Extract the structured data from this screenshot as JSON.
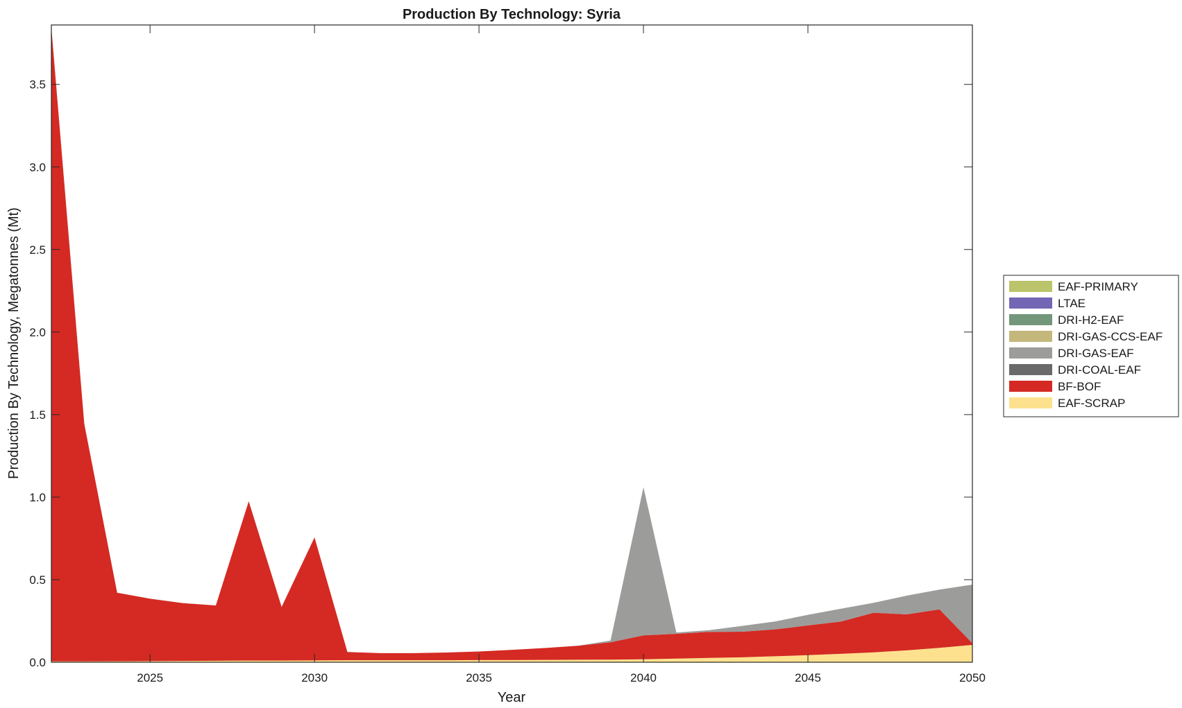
{
  "chart_data": {
    "type": "area",
    "stacked": true,
    "title": "Production By Technology: Syria",
    "xlabel": "Year",
    "ylabel": "Production By Technology, Megatonnes (Mt)",
    "xlim": [
      2022,
      2050
    ],
    "ylim": [
      0,
      3.86
    ],
    "xticks": [
      2025,
      2030,
      2035,
      2040,
      2045,
      2050
    ],
    "yticks": [
      0.0,
      0.5,
      1.0,
      1.5,
      2.0,
      2.5,
      3.0,
      3.5
    ],
    "ytick_labels": [
      "0.0",
      "0.5",
      "1.0",
      "1.5",
      "2.0",
      "2.5",
      "3.0",
      "3.5"
    ],
    "grid": false,
    "legend_position": "right",
    "x": [
      2022,
      2023,
      2024,
      2025,
      2026,
      2027,
      2028,
      2029,
      2030,
      2031,
      2032,
      2033,
      2034,
      2035,
      2036,
      2037,
      2038,
      2039,
      2040,
      2041,
      2042,
      2043,
      2044,
      2045,
      2046,
      2047,
      2048,
      2049,
      2050
    ],
    "series": [
      {
        "name": "EAF-SCRAP",
        "color": "#fde18e",
        "values": [
          0.005,
          0.005,
          0.006,
          0.007,
          0.008,
          0.009,
          0.01,
          0.01,
          0.011,
          0.012,
          0.012,
          0.012,
          0.012,
          0.013,
          0.013,
          0.014,
          0.015,
          0.016,
          0.018,
          0.022,
          0.026,
          0.03,
          0.036,
          0.043,
          0.051,
          0.06,
          0.072,
          0.087,
          0.105
        ]
      },
      {
        "name": "BF-BOF",
        "color": "#d42a23",
        "values": [
          3.84,
          1.44,
          0.415,
          0.378,
          0.35,
          0.335,
          0.965,
          0.325,
          0.745,
          0.05,
          0.043,
          0.043,
          0.047,
          0.052,
          0.062,
          0.072,
          0.085,
          0.105,
          0.145,
          0.15,
          0.158,
          0.155,
          0.163,
          0.18,
          0.195,
          0.24,
          0.218,
          0.233,
          0.01
        ]
      },
      {
        "name": "DRI-COAL-EAF",
        "color": "#6a6a6a",
        "values": [
          0,
          0,
          0,
          0,
          0,
          0,
          0,
          0,
          0,
          0,
          0,
          0,
          0,
          0,
          0,
          0,
          0,
          0,
          0,
          0,
          0,
          0,
          0,
          0,
          0,
          0,
          0,
          0,
          0
        ]
      },
      {
        "name": "DRI-GAS-EAF",
        "color": "#9c9c9b",
        "values": [
          0,
          0,
          0,
          0,
          0,
          0,
          0,
          0,
          0,
          0,
          0,
          0,
          0,
          0,
          0,
          0,
          0,
          0.01,
          0.897,
          0.008,
          0.01,
          0.035,
          0.048,
          0.064,
          0.078,
          0.06,
          0.113,
          0.12,
          0.355
        ]
      },
      {
        "name": "DRI-GAS-CCS-EAF",
        "color": "#c4b77b",
        "values": [
          0,
          0,
          0,
          0,
          0,
          0,
          0,
          0,
          0,
          0,
          0,
          0,
          0,
          0,
          0,
          0,
          0,
          0,
          0,
          0,
          0,
          0,
          0,
          0,
          0,
          0,
          0,
          0,
          0
        ]
      },
      {
        "name": "DRI-H2-EAF",
        "color": "#74967a",
        "values": [
          0,
          0,
          0,
          0,
          0,
          0,
          0,
          0,
          0,
          0,
          0,
          0,
          0,
          0,
          0,
          0,
          0,
          0,
          0,
          0,
          0,
          0,
          0,
          0,
          0,
          0,
          0,
          0,
          0
        ]
      },
      {
        "name": "LTAE",
        "color": "#7366b4",
        "values": [
          0,
          0,
          0,
          0,
          0,
          0,
          0,
          0,
          0,
          0,
          0,
          0,
          0,
          0,
          0,
          0,
          0,
          0,
          0,
          0,
          0,
          0,
          0,
          0,
          0,
          0,
          0,
          0,
          0
        ]
      },
      {
        "name": "EAF-PRIMARY",
        "color": "#bbc46a",
        "values": [
          0,
          0,
          0,
          0,
          0,
          0,
          0,
          0,
          0,
          0,
          0,
          0,
          0,
          0,
          0,
          0,
          0,
          0,
          0,
          0,
          0,
          0,
          0,
          0,
          0,
          0,
          0,
          0,
          0
        ]
      }
    ],
    "legend_order": [
      "EAF-PRIMARY",
      "LTAE",
      "DRI-H2-EAF",
      "DRI-GAS-CCS-EAF",
      "DRI-GAS-EAF",
      "DRI-COAL-EAF",
      "BF-BOF",
      "EAF-SCRAP"
    ]
  }
}
